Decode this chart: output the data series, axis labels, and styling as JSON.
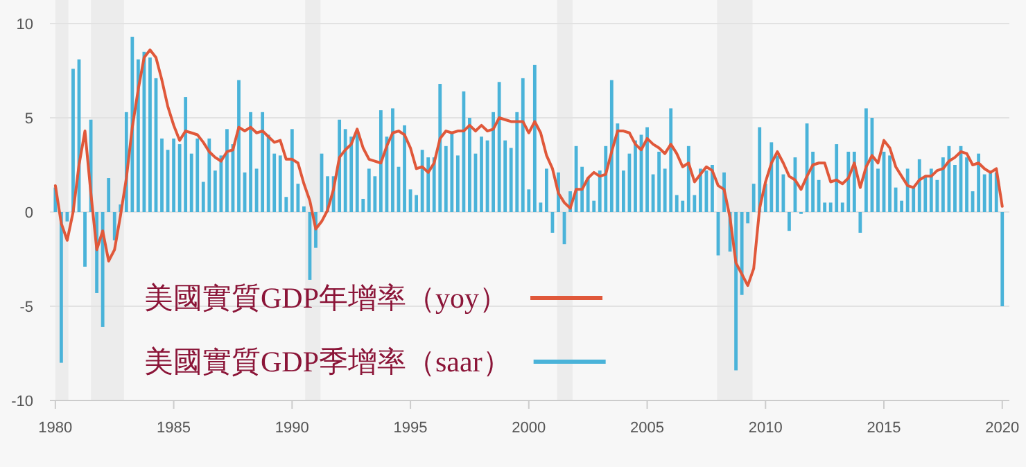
{
  "chart_data": {
    "type": "bar",
    "x": [
      1980,
      1980.25,
      1980.5,
      1980.75,
      1981,
      1981.25,
      1981.5,
      1981.75,
      1982,
      1982.25,
      1982.5,
      1982.75,
      1983,
      1983.25,
      1983.5,
      1983.75,
      1984,
      1984.25,
      1984.5,
      1984.75,
      1985,
      1985.25,
      1985.5,
      1985.75,
      1986,
      1986.25,
      1986.5,
      1986.75,
      1987,
      1987.25,
      1987.5,
      1987.75,
      1988,
      1988.25,
      1988.5,
      1988.75,
      1989,
      1989.25,
      1989.5,
      1989.75,
      1990,
      1990.25,
      1990.5,
      1990.75,
      1991,
      1991.25,
      1991.5,
      1991.75,
      1992,
      1992.25,
      1992.5,
      1992.75,
      1993,
      1993.25,
      1993.5,
      1993.75,
      1994,
      1994.25,
      1994.5,
      1994.75,
      1995,
      1995.25,
      1995.5,
      1995.75,
      1996,
      1996.25,
      1996.5,
      1996.75,
      1997,
      1997.25,
      1997.5,
      1997.75,
      1998,
      1998.25,
      1998.5,
      1998.75,
      1999,
      1999.25,
      1999.5,
      1999.75,
      2000,
      2000.25,
      2000.5,
      2000.75,
      2001,
      2001.25,
      2001.5,
      2001.75,
      2002,
      2002.25,
      2002.5,
      2002.75,
      2003,
      2003.25,
      2003.5,
      2003.75,
      2004,
      2004.25,
      2004.5,
      2004.75,
      2005,
      2005.25,
      2005.5,
      2005.75,
      2006,
      2006.25,
      2006.5,
      2006.75,
      2007,
      2007.25,
      2007.5,
      2007.75,
      2008,
      2008.25,
      2008.5,
      2008.75,
      2009,
      2009.25,
      2009.5,
      2009.75,
      2010,
      2010.25,
      2010.5,
      2010.75,
      2011,
      2011.25,
      2011.5,
      2011.75,
      2012,
      2012.25,
      2012.5,
      2012.75,
      2013,
      2013.25,
      2013.5,
      2013.75,
      2014,
      2014.25,
      2014.5,
      2014.75,
      2015,
      2015.25,
      2015.5,
      2015.75,
      2016,
      2016.25,
      2016.5,
      2016.75,
      2017,
      2017.25,
      2017.5,
      2017.75,
      2018,
      2018.25,
      2018.5,
      2018.75,
      2019,
      2019.25,
      2019.5,
      2019.75,
      2020
    ],
    "series": [
      {
        "name": "美國實質GDP年增率（yoy）",
        "type": "line",
        "color": "#e0583a",
        "values": [
          1.4,
          -0.6,
          -1.5,
          0.0,
          2.5,
          4.3,
          1.0,
          -2.0,
          -1.0,
          -2.6,
          -2.0,
          -0.2,
          1.8,
          4.5,
          6.5,
          8.2,
          8.6,
          8.2,
          7.0,
          5.6,
          4.6,
          3.8,
          4.3,
          4.2,
          4.1,
          3.7,
          3.2,
          2.9,
          2.7,
          3.2,
          3.3,
          4.5,
          4.3,
          4.5,
          4.2,
          4.3,
          4.0,
          3.7,
          3.8,
          2.8,
          2.8,
          2.6,
          1.5,
          0.6,
          -0.9,
          -0.5,
          0.1,
          1.2,
          2.9,
          3.3,
          3.6,
          4.4,
          3.4,
          2.8,
          2.7,
          2.6,
          3.5,
          4.2,
          4.3,
          4.1,
          3.4,
          2.3,
          2.4,
          2.1,
          2.6,
          3.9,
          4.3,
          4.2,
          4.3,
          4.3,
          4.6,
          4.3,
          4.6,
          4.3,
          4.4,
          5.0,
          4.9,
          4.8,
          4.8,
          4.8,
          4.2,
          4.8,
          4.2,
          3.0,
          2.3,
          1.0,
          0.5,
          0.2,
          1.2,
          1.2,
          1.8,
          2.1,
          1.9,
          2.0,
          3.2,
          4.3,
          4.3,
          4.2,
          3.6,
          3.3,
          3.9,
          3.6,
          3.4,
          3.1,
          3.6,
          3.1,
          2.4,
          2.6,
          1.6,
          2.0,
          2.4,
          2.2,
          1.4,
          1.2,
          -0.3,
          -2.7,
          -3.3,
          -3.9,
          -3.0,
          0.2,
          1.6,
          2.6,
          3.2,
          2.6,
          1.9,
          1.7,
          1.2,
          1.9,
          2.5,
          2.6,
          2.6,
          1.6,
          1.7,
          1.5,
          1.8,
          2.6,
          1.3,
          2.4,
          3.0,
          2.6,
          3.8,
          3.4,
          2.4,
          1.9,
          1.4,
          1.3,
          1.7,
          1.9,
          1.9,
          2.2,
          2.3,
          2.7,
          2.9,
          3.2,
          3.1,
          2.5,
          2.6,
          2.3,
          2.1,
          2.3,
          0.3
        ]
      },
      {
        "name": "美國實質GDP季增率（saar）",
        "color": "#4ab3d9",
        "values": [
          1.3,
          -8.0,
          -0.5,
          7.6,
          8.1,
          -2.9,
          4.9,
          -4.3,
          -6.1,
          1.8,
          -1.5,
          0.4,
          5.3,
          9.3,
          8.1,
          8.5,
          8.2,
          7.1,
          3.9,
          3.3,
          3.9,
          3.6,
          6.1,
          3.1,
          3.9,
          1.6,
          3.9,
          2.2,
          3.0,
          4.4,
          3.6,
          7.0,
          2.1,
          5.3,
          2.3,
          5.3,
          4.1,
          3.1,
          3.0,
          0.8,
          4.4,
          1.5,
          0.3,
          -3.6,
          -1.9,
          3.1,
          1.9,
          1.9,
          4.9,
          4.4,
          4.0,
          4.2,
          0.7,
          2.3,
          1.9,
          5.4,
          4.0,
          5.5,
          2.4,
          4.6,
          1.2,
          0.9,
          3.3,
          2.9,
          2.9,
          6.8,
          3.5,
          4.2,
          3.0,
          6.4,
          5.0,
          3.1,
          4.0,
          3.8,
          5.3,
          6.9,
          3.8,
          3.4,
          5.3,
          7.1,
          1.2,
          7.8,
          0.5,
          2.3,
          -1.1,
          2.1,
          -1.7,
          1.1,
          3.5,
          2.4,
          1.8,
          0.6,
          2.2,
          3.5,
          7.0,
          4.7,
          2.2,
          3.1,
          3.8,
          4.1,
          4.5,
          2.0,
          3.2,
          2.3,
          5.5,
          0.9,
          0.6,
          3.5,
          0.9,
          2.3,
          2.2,
          2.5,
          -2.3,
          2.1,
          -2.1,
          -8.4,
          -4.4,
          -0.6,
          1.5,
          4.5,
          1.5,
          3.7,
          3.0,
          2.0,
          -1.0,
          2.9,
          -0.1,
          4.7,
          3.2,
          1.7,
          0.5,
          0.5,
          3.6,
          0.5,
          3.2,
          3.2,
          -1.1,
          5.5,
          5.0,
          2.3,
          3.2,
          3.0,
          1.3,
          0.6,
          2.3,
          1.3,
          2.8,
          1.9,
          2.3,
          1.7,
          2.9,
          3.5,
          2.5,
          3.5,
          2.9,
          1.1,
          3.1,
          2.0,
          2.1,
          2.1,
          -5.0
        ]
      }
    ],
    "xlim": [
      1979.77,
      2020.3
    ],
    "xticks": [
      1980,
      1985,
      1990,
      1995,
      2000,
      2005,
      2010,
      2015,
      2020
    ],
    "ylim": [
      -10,
      10
    ],
    "yticks": [
      -10,
      -5,
      0,
      5,
      10
    ],
    "bands": [
      {
        "axis": "x",
        "from": 1980.0,
        "to": 1980.55,
        "color": "#ececec"
      },
      {
        "axis": "x",
        "from": 1981.5,
        "to": 1982.9,
        "color": "#ececec"
      },
      {
        "axis": "x",
        "from": 1990.55,
        "to": 1991.2,
        "color": "#ececec"
      },
      {
        "axis": "x",
        "from": 2001.2,
        "to": 2001.85,
        "color": "#ececec"
      },
      {
        "axis": "x",
        "from": 2007.95,
        "to": 2009.45,
        "color": "#ececec"
      }
    ],
    "grid": "y",
    "legend": "bottom left"
  }
}
